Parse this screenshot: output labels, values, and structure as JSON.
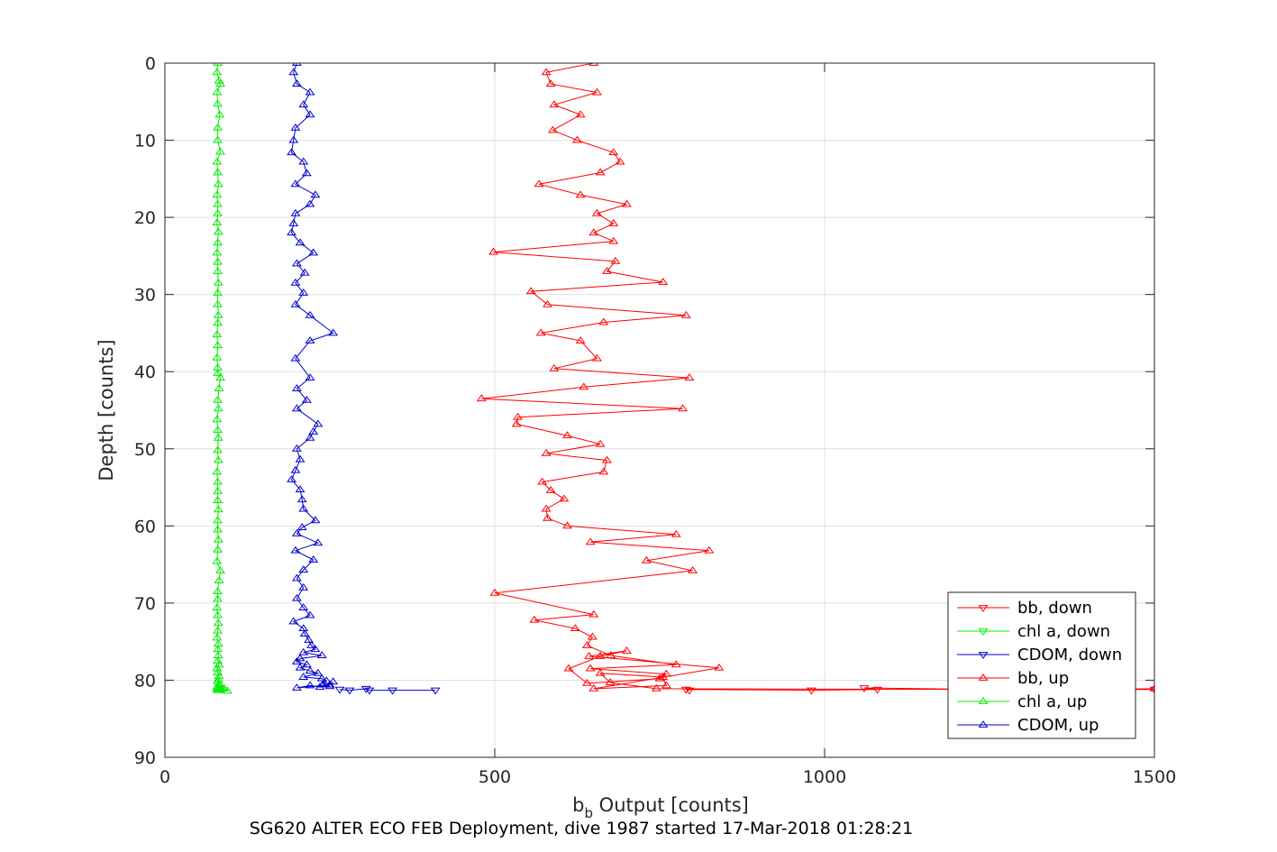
{
  "chart_data": {
    "type": "line",
    "title": "",
    "xlabel_main": "b",
    "xlabel_sub": "b",
    "xlabel_rest": " Output [counts]",
    "ylabel": "Depth [counts]",
    "caption": "SG620 ALTER ECO FEB Deployment, dive 1987 started 17-Mar-2018 01:28:21",
    "xlim": [
      0,
      1500
    ],
    "ylim": [
      0,
      90
    ],
    "y_reversed": true,
    "grid": true,
    "legend_position": "bottom-right",
    "x_ticks": [
      0,
      500,
      1000,
      1500
    ],
    "x_tick_labels": [
      "0",
      "500",
      "1000",
      "1500"
    ],
    "y_ticks": [
      0,
      10,
      20,
      30,
      40,
      50,
      60,
      70,
      80,
      90
    ],
    "y_tick_labels": [
      "0",
      "10",
      "20",
      "30",
      "40",
      "50",
      "60",
      "70",
      "80",
      "90"
    ],
    "series": [
      {
        "name": "bb, down",
        "color": "#ff0000",
        "marker": "triangle-down",
        "x": [
          1500,
          1250,
          1060,
          1080,
          980,
          790,
          795
        ],
        "y": [
          81.2,
          81.2,
          81.0,
          81.2,
          81.3,
          81.2,
          81.3
        ]
      },
      {
        "name": "chl a, down",
        "color": "#00ee00",
        "marker": "triangle-down",
        "x": [
          83,
          85
        ],
        "y": [
          81.0,
          81.2
        ]
      },
      {
        "name": "CDOM, down",
        "color": "#0000cc",
        "marker": "triangle-down",
        "x": [
          410,
          345,
          310,
          305,
          280,
          265
        ],
        "y": [
          81.3,
          81.3,
          81.3,
          81.1,
          81.3,
          81.2
        ]
      },
      {
        "name": "bb, up",
        "color": "#ff0000",
        "marker": "triangle-up",
        "x": [
          650,
          578,
          585,
          655,
          590,
          630,
          588,
          625,
          680,
          690,
          660,
          567,
          630,
          700,
          655,
          680,
          650,
          680,
          498,
          683,
          670,
          755,
          555,
          580,
          790,
          665,
          570,
          630,
          655,
          590,
          795,
          635,
          480,
          785,
          535,
          533,
          610,
          660,
          578,
          670,
          665,
          572,
          585,
          605,
          578,
          580,
          610,
          775,
          645,
          825,
          730,
          800,
          500,
          650,
          560,
          622,
          648,
          640,
          676,
          775,
          645,
          760,
          750,
          640,
          612,
          660,
          700,
          643,
          840,
          650,
          760,
          755,
          660,
          675,
          745,
          1250,
          1500
        ],
        "y": [
          0,
          1.2,
          2.7,
          3.8,
          5.4,
          6.7,
          8.7,
          10.0,
          11.6,
          12.8,
          14.2,
          15.7,
          17.1,
          18.3,
          19.5,
          20.8,
          22.0,
          23.1,
          24.5,
          25.7,
          27.0,
          28.4,
          29.6,
          31.3,
          32.7,
          33.6,
          35.0,
          36.0,
          38.3,
          39.6,
          40.8,
          42.0,
          43.5,
          44.8,
          45.9,
          46.8,
          48.3,
          49.4,
          50.6,
          51.5,
          53.0,
          54.3,
          55.4,
          56.5,
          57.8,
          59.0,
          60.0,
          61.1,
          62.1,
          63.2,
          64.5,
          65.8,
          68.7,
          71.5,
          72.2,
          73.3,
          74.4,
          75.5,
          76.8,
          78.0,
          78.5,
          79.2,
          79.8,
          80.4,
          78.5,
          76.9,
          76.2,
          76.9,
          78.4,
          81.1,
          80.7,
          79.6,
          79.1,
          80.3,
          81.1,
          81.2,
          81.1
        ]
      },
      {
        "name": "chl a, up",
        "color": "#00ee00",
        "marker": "triangle-up",
        "x": [
          80,
          79,
          82,
          84,
          79,
          80,
          83,
          80,
          80,
          84,
          79,
          80,
          81,
          79,
          80,
          80,
          79,
          81,
          80,
          79,
          80,
          80,
          81,
          80,
          80,
          81,
          80,
          79,
          80,
          79,
          80,
          80,
          84,
          82,
          80,
          81,
          79,
          80,
          81,
          80,
          81,
          79,
          80,
          80,
          80,
          81,
          80,
          80,
          81,
          80,
          79,
          84,
          82,
          80,
          80,
          79,
          80,
          81,
          80,
          79,
          81,
          80,
          81,
          80,
          82,
          79,
          80,
          82,
          81,
          80,
          82,
          79,
          85,
          81,
          79,
          80,
          82,
          83,
          83,
          90,
          95
        ],
        "y": [
          0,
          1.2,
          2.3,
          2.7,
          3.8,
          5.3,
          6.7,
          8.4,
          10.0,
          11.5,
          12.8,
          14.2,
          15.7,
          17.1,
          18.3,
          19.5,
          20.7,
          21.9,
          23.3,
          24.6,
          25.8,
          27.0,
          28.5,
          29.8,
          31.3,
          32.7,
          33.7,
          35.2,
          36.6,
          38.2,
          39.5,
          40.2,
          40.8,
          42.2,
          43.7,
          44.8,
          46.2,
          47.6,
          48.6,
          50.2,
          51.5,
          53.0,
          54.3,
          55.5,
          56.7,
          57.9,
          59.3,
          60.5,
          61.8,
          63.1,
          64.6,
          65.8,
          67.1,
          68.5,
          69.5,
          70.6,
          71.6,
          72.6,
          73.6,
          74.5,
          75.3,
          76.0,
          76.8,
          77.5,
          78.0,
          78.5,
          79.0,
          79.5,
          79.9,
          80.2,
          80.5,
          80.9,
          81.1,
          81.2,
          81.2,
          81.3,
          81.1,
          80.7,
          81.3,
          81.1,
          81.4
        ]
      },
      {
        "name": "CDOM, up",
        "color": "#0000cc",
        "marker": "triangle-up",
        "x": [
          200,
          195,
          200,
          220,
          210,
          220,
          198,
          195,
          192,
          210,
          215,
          198,
          228,
          220,
          198,
          195,
          192,
          205,
          225,
          200,
          212,
          198,
          210,
          198,
          220,
          255,
          220,
          198,
          220,
          200,
          215,
          200,
          232,
          225,
          220,
          200,
          205,
          198,
          192,
          205,
          208,
          210,
          228,
          208,
          200,
          232,
          198,
          225,
          210,
          200,
          210,
          200,
          210,
          220,
          195,
          210,
          212,
          218,
          222,
          228,
          210,
          238,
          205,
          200,
          215,
          205,
          220,
          232,
          210,
          238,
          245,
          240,
          250,
          235,
          220,
          200,
          250,
          255
        ],
        "y": [
          0,
          1.2,
          2.7,
          3.8,
          5.4,
          6.7,
          8.4,
          10.0,
          11.6,
          12.8,
          14.3,
          15.7,
          17.1,
          18.3,
          19.5,
          20.8,
          22.0,
          23.3,
          24.6,
          26.0,
          27.2,
          28.5,
          29.8,
          31.3,
          32.7,
          35.0,
          36.0,
          38.3,
          40.8,
          42.2,
          43.7,
          44.8,
          46.8,
          47.8,
          48.6,
          50.0,
          51.4,
          52.8,
          54.0,
          55.3,
          56.6,
          57.8,
          59.3,
          60.2,
          61.0,
          62.2,
          63.2,
          64.4,
          65.7,
          66.8,
          68.0,
          69.4,
          70.6,
          71.6,
          72.4,
          73.3,
          74.0,
          74.8,
          75.5,
          76.0,
          76.4,
          76.8,
          77.2,
          77.6,
          78.0,
          78.4,
          78.8,
          79.1,
          79.6,
          79.8,
          80.1,
          80.5,
          80.8,
          80.9,
          80.7,
          81.0,
          80.6,
          80.2
        ]
      }
    ]
  }
}
